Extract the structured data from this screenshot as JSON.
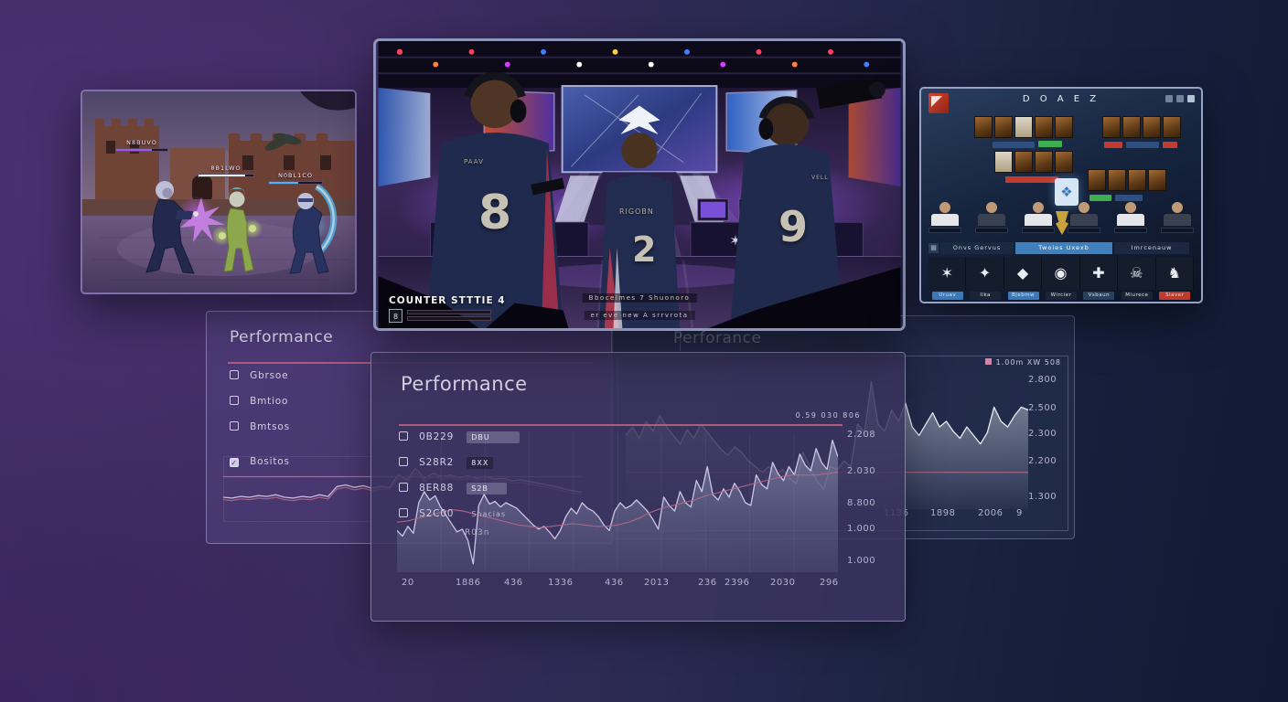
{
  "icons": {
    "check": "✓",
    "legend_swatch": "▪",
    "grid": "▦"
  },
  "game_panel": {
    "players": [
      {
        "name": "N8BUVO",
        "bar_color": "#a055f0",
        "bar_pct": 70
      },
      {
        "name": "8B1LWO",
        "bar_color": "#eceff0",
        "bar_pct": 85
      },
      {
        "name": "N0BL1CO",
        "bar_color": "#55b0f5",
        "bar_pct": 55
      }
    ]
  },
  "stage_panel": {
    "hud_title": "COUNTER STTTIE 4",
    "hud_slot": "8",
    "caption_line1": "Bbocelmes 7  Shuonoro",
    "caption_line2": "er eve new A  srrvrota",
    "players": [
      {
        "number": "8",
        "name": "PAAV"
      },
      {
        "number": "2",
        "name": "RIGOBN"
      },
      {
        "number": "9",
        "name": "VELL"
      }
    ]
  },
  "dota_panel": {
    "title": "D O A E Z",
    "tab_group": "Onvs Gervus",
    "tab_active": "Twoies Uxexb",
    "tab_right": "Imrcenauw",
    "teams": [
      {
        "icon": "✶",
        "chip": "Uruav",
        "chip_color": "#3a78b8"
      },
      {
        "icon": "✦",
        "chip": "Ilka",
        "chip_color": "#1a2436"
      },
      {
        "icon": "◆",
        "chip": "Bjebmw",
        "chip_color": "#3a78b8"
      },
      {
        "icon": "◉",
        "chip": "Wircier",
        "chip_color": "#1a2436"
      },
      {
        "icon": "✚",
        "chip": "Vsbaun",
        "chip_color": "#27405e"
      },
      {
        "icon": "☠",
        "chip": "Miurece",
        "chip_color": "#1a2436"
      },
      {
        "icon": "♞",
        "chip": "Siaver",
        "chip_color": "#c0392b"
      }
    ]
  },
  "left_panel": {
    "title": "Performance",
    "checkboxes": [
      {
        "label": "Gbrsoe",
        "checked": false
      },
      {
        "label": "Bmtioo",
        "checked": false
      },
      {
        "label": "Bmtsos",
        "checked": false
      },
      {
        "label": "Bositos",
        "checked": true
      }
    ]
  },
  "right_panel": {
    "title": "Perforance",
    "legend": "1.00m  XW 508",
    "y_ticks": [
      "2.800",
      "2.500",
      "2.300",
      "2.200",
      "1.300"
    ],
    "x_ticks": [
      "1136",
      "1898",
      "2006",
      "9"
    ]
  },
  "main_panel": {
    "title": "Performance",
    "meta": "0.59  030  806",
    "legend": [
      {
        "label": "0B229",
        "badge": "DBU"
      },
      {
        "label": "S28R2",
        "badge": "8XX"
      },
      {
        "label": "8ER88",
        "badge": "S2B"
      },
      {
        "label": "S2C00",
        "badge": "Snacias"
      }
    ],
    "extra_label": "R03n",
    "y_ticks": [
      "2.208",
      "2.030",
      "8.800",
      "1.000",
      "1.000"
    ],
    "x_ticks": [
      "20",
      "1886",
      "436",
      "1336",
      "436",
      "2013",
      "236",
      "2396",
      "2030",
      "296"
    ]
  },
  "chart_data": [
    {
      "id": "main",
      "type": "area",
      "title": "Performance",
      "line_color": "#cbc6e2",
      "trend_color": "#b2678a",
      "fill_top": "rgba(170,180,210,0.45)",
      "fill_bottom": "rgba(140,150,185,0.15)",
      "grid_cols": 10,
      "ylim": [
        0,
        100
      ],
      "values": [
        30,
        26,
        33,
        28,
        50,
        58,
        52,
        55,
        47,
        41,
        35,
        29,
        31,
        23,
        6,
        48,
        56,
        49,
        51,
        47,
        50,
        48,
        46,
        42,
        38,
        34,
        31,
        33,
        29,
        24,
        30,
        40,
        46,
        42,
        50,
        46,
        44,
        40,
        34,
        30,
        44,
        50,
        46,
        48,
        52,
        48,
        44,
        38,
        31,
        54,
        48,
        44,
        58,
        50,
        47,
        66,
        58,
        76,
        56,
        52,
        60,
        54,
        64,
        58,
        50,
        48,
        70,
        63,
        60,
        79,
        71,
        66,
        76,
        70,
        85,
        77,
        73,
        89,
        79,
        74,
        95,
        83
      ],
      "trend": [
        36,
        37,
        39,
        41,
        43,
        45,
        44,
        42,
        40,
        38,
        36,
        34,
        33,
        32,
        33,
        34,
        35,
        34,
        33,
        33,
        34,
        36,
        39,
        43,
        46,
        48,
        50,
        52,
        55,
        57,
        59,
        61,
        63,
        65,
        67,
        69,
        70,
        70,
        70,
        71,
        72
      ]
    },
    {
      "id": "left",
      "type": "line",
      "title": "Performance",
      "line_color": "#c7bede",
      "trend_color": "#b2678a",
      "hline": 55,
      "hline_color": "#c06a88",
      "ylim": [
        0,
        100
      ],
      "values": [
        30,
        29,
        31,
        30,
        32,
        31,
        33,
        30,
        29,
        31,
        30,
        33,
        31,
        43,
        45,
        42,
        44,
        41,
        43,
        42,
        57,
        51,
        65,
        53,
        59,
        55,
        57,
        54,
        56,
        53,
        55,
        52,
        53,
        50,
        51,
        49,
        47,
        45,
        43,
        40,
        38,
        36
      ],
      "trend": [
        27,
        26,
        28,
        27,
        29,
        28,
        30,
        27,
        26,
        28,
        27,
        30,
        28,
        40,
        42,
        39,
        41,
        38,
        40,
        39,
        53,
        48,
        60,
        50,
        55,
        52,
        54,
        51,
        53,
        50,
        52,
        49,
        50,
        47,
        48,
        46,
        44,
        42,
        40,
        37,
        35,
        33
      ]
    },
    {
      "id": "right",
      "type": "area",
      "title": "Perforance",
      "line_color": "#e8ebf4",
      "fill_top": "rgba(228,234,246,0.5)",
      "fill_bottom": "rgba(228,234,246,0.04)",
      "hline": 26,
      "hline_color": "#b2678a",
      "ylim": [
        0,
        100
      ],
      "values": [
        52,
        58,
        50,
        62,
        55,
        66,
        58,
        52,
        46,
        56,
        50,
        60,
        54,
        48,
        42,
        38,
        44,
        40,
        34,
        30,
        26,
        30,
        24,
        28,
        22,
        18,
        40,
        30,
        20,
        14,
        30,
        28,
        34,
        30,
        60,
        54,
        90,
        60,
        55,
        70,
        62,
        75,
        58,
        52,
        60,
        68,
        58,
        62,
        55,
        50,
        58,
        52,
        46,
        54,
        72,
        62,
        58,
        66,
        72,
        70
      ]
    }
  ]
}
